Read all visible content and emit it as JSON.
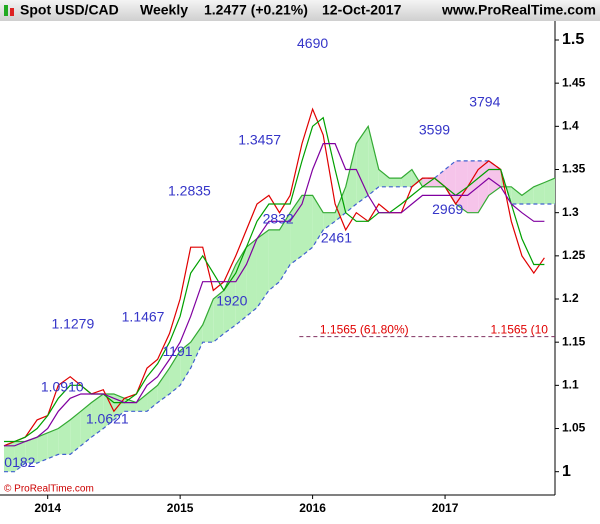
{
  "header": {
    "symbol": "Spot USD/CAD",
    "period": "Weekly",
    "last": "1.2477 (+0.21%)",
    "date": "12-Oct-2017",
    "source": "www.ProRealTime.com"
  },
  "footer": "© ProRealTime.com",
  "chart_data": {
    "type": "line",
    "x": [
      2013.67,
      2013.75,
      2013.83,
      2013.92,
      2014.0,
      2014.08,
      2014.17,
      2014.25,
      2014.33,
      2014.42,
      2014.5,
      2014.58,
      2014.67,
      2014.75,
      2014.83,
      2014.92,
      2015.0,
      2015.08,
      2015.17,
      2015.25,
      2015.33,
      2015.42,
      2015.5,
      2015.58,
      2015.67,
      2015.75,
      2015.83,
      2015.92,
      2016.0,
      2016.08,
      2016.17,
      2016.25,
      2016.33,
      2016.42,
      2016.5,
      2016.58,
      2016.67,
      2016.75,
      2016.83,
      2016.92,
      2017.0,
      2017.08,
      2017.17,
      2017.25,
      2017.33,
      2017.42,
      2017.5,
      2017.58,
      2017.67,
      2017.75,
      2017.83
    ],
    "series": [
      {
        "color": "#e00000",
        "values": [
          1.03,
          1.035,
          1.04,
          1.06,
          1.065,
          1.1,
          1.11,
          1.1,
          1.09,
          1.095,
          1.07,
          1.085,
          1.09,
          1.12,
          1.13,
          1.16,
          1.2,
          1.26,
          1.26,
          1.21,
          1.22,
          1.25,
          1.28,
          1.31,
          1.32,
          1.3,
          1.32,
          1.38,
          1.42,
          1.39,
          1.31,
          1.28,
          1.3,
          1.29,
          1.31,
          1.3,
          1.3,
          1.33,
          1.34,
          1.34,
          1.33,
          1.31,
          1.33,
          1.35,
          1.36,
          1.35,
          1.29,
          1.25,
          1.23,
          1.2477,
          null
        ]
      },
      {
        "color": "#00a000",
        "values": [
          1.035,
          1.035,
          1.04,
          1.05,
          1.065,
          1.085,
          1.1,
          1.1,
          1.09,
          1.09,
          1.08,
          1.08,
          1.09,
          1.11,
          1.125,
          1.15,
          1.18,
          1.23,
          1.25,
          1.23,
          1.21,
          1.23,
          1.26,
          1.29,
          1.31,
          1.31,
          1.31,
          1.36,
          1.4,
          1.41,
          1.35,
          1.3,
          1.29,
          1.29,
          1.3,
          1.3,
          1.31,
          1.32,
          1.33,
          1.34,
          1.33,
          1.32,
          1.33,
          1.34,
          1.35,
          1.35,
          1.31,
          1.27,
          1.24,
          1.24,
          null
        ]
      },
      {
        "color": "#8000a0",
        "values": [
          1.03,
          1.03,
          1.035,
          1.04,
          1.05,
          1.07,
          1.085,
          1.09,
          1.09,
          1.09,
          1.085,
          1.08,
          1.08,
          1.1,
          1.11,
          1.13,
          1.15,
          1.18,
          1.22,
          1.22,
          1.22,
          1.22,
          1.24,
          1.27,
          1.29,
          1.29,
          1.29,
          1.31,
          1.35,
          1.38,
          1.38,
          1.35,
          1.35,
          1.32,
          1.3,
          1.3,
          1.3,
          1.31,
          1.32,
          1.32,
          1.32,
          1.32,
          1.32,
          1.33,
          1.34,
          1.33,
          1.31,
          1.3,
          1.29,
          1.29,
          null
        ]
      }
    ],
    "cloud": {
      "up_color": "#b8f0b8",
      "down_color": "#f6c4ea",
      "span_a": {
        "color": "#33aa33",
        "values": [
          1.03,
          1.035,
          1.035,
          1.04,
          1.045,
          1.05,
          1.06,
          1.07,
          1.08,
          1.09,
          1.09,
          1.085,
          1.08,
          1.09,
          1.1,
          1.12,
          1.14,
          1.15,
          1.17,
          1.2,
          1.21,
          1.24,
          1.26,
          1.27,
          1.28,
          1.28,
          1.3,
          1.32,
          1.32,
          1.3,
          1.3,
          1.33,
          1.38,
          1.4,
          1.35,
          1.34,
          1.34,
          1.35,
          1.33,
          1.33,
          1.33,
          1.31,
          1.3,
          1.3,
          1.32,
          1.33,
          1.33,
          1.32,
          1.33,
          1.335,
          1.34
        ]
      },
      "span_b": {
        "color": "#4060d0",
        "values": [
          1.0,
          1.0,
          1.01,
          1.01,
          1.015,
          1.02,
          1.02,
          1.03,
          1.04,
          1.05,
          1.06,
          1.07,
          1.07,
          1.07,
          1.08,
          1.09,
          1.1,
          1.12,
          1.15,
          1.15,
          1.16,
          1.17,
          1.18,
          1.19,
          1.21,
          1.22,
          1.24,
          1.25,
          1.26,
          1.28,
          1.29,
          1.3,
          1.31,
          1.32,
          1.33,
          1.33,
          1.33,
          1.33,
          1.34,
          1.34,
          1.35,
          1.36,
          1.36,
          1.36,
          1.36,
          1.35,
          1.31,
          1.31,
          1.31,
          1.31,
          1.31
        ]
      }
    },
    "level": {
      "value": 1.1565,
      "x_start": 2015.9,
      "color": "#e00000"
    },
    "annotations": [
      {
        "text": "4690",
        "x": 2016.0,
        "y": 1.495
      },
      {
        "text": "3794",
        "x": 2017.3,
        "y": 1.427
      },
      {
        "text": "3599",
        "x": 2016.92,
        "y": 1.395
      },
      {
        "text": "1.3457",
        "x": 2015.6,
        "y": 1.383
      },
      {
        "text": "1.2835",
        "x": 2015.07,
        "y": 1.324
      },
      {
        "text": "2832",
        "x": 2015.74,
        "y": 1.292
      },
      {
        "text": "2969",
        "x": 2017.02,
        "y": 1.303
      },
      {
        "text": "2461",
        "x": 2016.18,
        "y": 1.27
      },
      {
        "text": "1920",
        "x": 2015.39,
        "y": 1.197
      },
      {
        "text": "1.1279",
        "x": 2014.19,
        "y": 1.17
      },
      {
        "text": "1.1467",
        "x": 2014.72,
        "y": 1.178
      },
      {
        "text": "1191",
        "x": 2014.98,
        "y": 1.138
      },
      {
        "text": "1.0910",
        "x": 2014.11,
        "y": 1.097
      },
      {
        "text": "1.0621",
        "x": 2014.45,
        "y": 1.06
      },
      {
        "text": "0182",
        "x": 2013.79,
        "y": 1.01
      },
      {
        "text": "1.1565 (61.80%)",
        "x": 2016.39,
        "y": 1.164,
        "color": "#e00000"
      },
      {
        "text": "1.1565 (10",
        "x": 2017.56,
        "y": 1.164,
        "color": "#e00000"
      }
    ],
    "xlim": [
      2013.64,
      2017.83
    ],
    "xticks": [
      2014,
      2015,
      2016,
      2017
    ],
    "ylim": [
      0.973,
      1.522
    ],
    "yticks": [
      1,
      1.05,
      1.1,
      1.15,
      1.2,
      1.25,
      1.3,
      1.35,
      1.4,
      1.45,
      1.5
    ]
  }
}
